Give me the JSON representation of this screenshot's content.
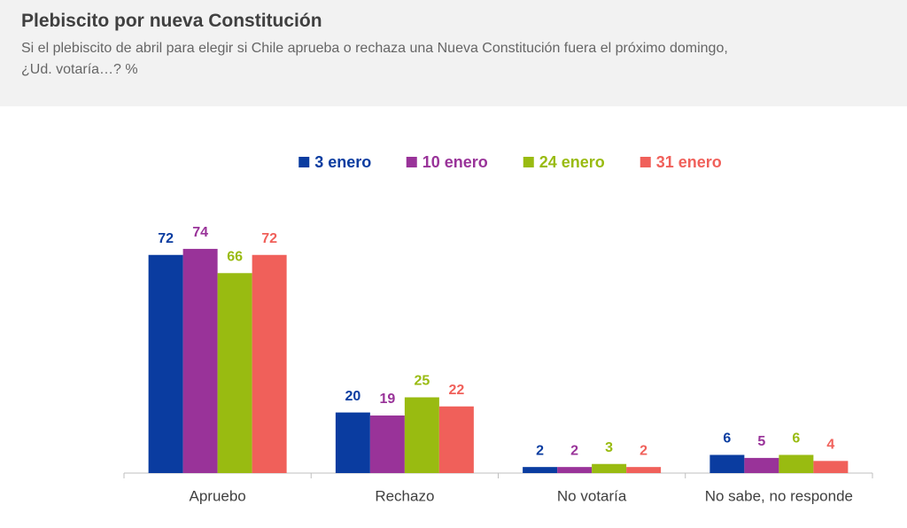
{
  "chart_data": {
    "type": "bar",
    "title": "Plebiscito por nueva Constitución",
    "subtitle": [
      "Si el plebiscito de abril para elegir si Chile aprueba o rechaza una Nueva Constitución fuera el próximo domingo,",
      "¿Ud. votaría…? %"
    ],
    "categories": [
      "Apruebo",
      "Rechazo",
      "No votaría",
      "No sabe, no responde"
    ],
    "series": [
      {
        "name": "3 enero",
        "color": "#0a3ca0",
        "values": [
          72,
          20,
          2,
          6
        ]
      },
      {
        "name": "10 enero",
        "color": "#993399",
        "values": [
          74,
          19,
          2,
          5
        ]
      },
      {
        "name": "24 enero",
        "color": "#99bb11",
        "values": [
          66,
          25,
          3,
          6
        ]
      },
      {
        "name": "31 enero",
        "color": "#f0605a",
        "values": [
          72,
          22,
          2,
          4
        ]
      }
    ]
  }
}
